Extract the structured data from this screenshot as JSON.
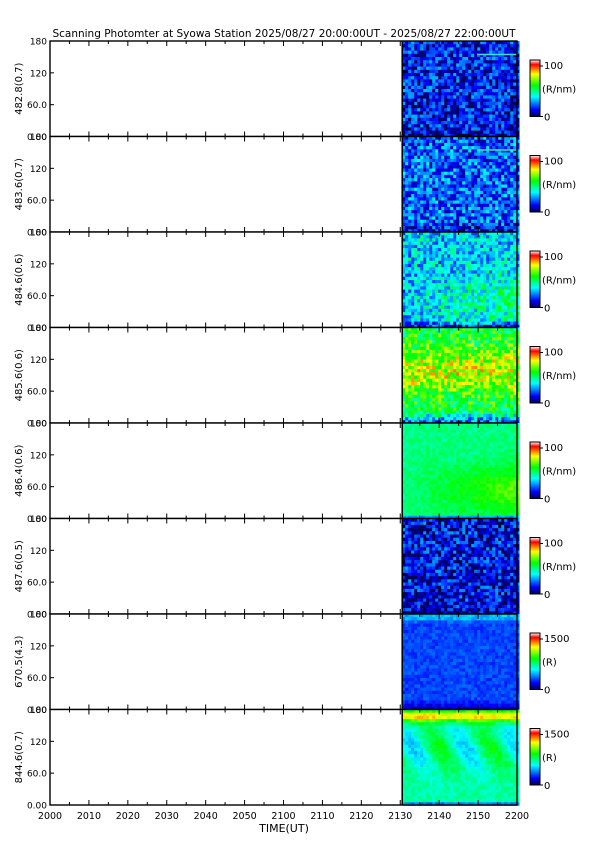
{
  "title": "Scanning Photomter at Syowa Station  2025/08/27 20:00:00UT - 2025/08/27 22:00:00UT",
  "x_axis": {
    "label": "TIME(UT)",
    "tick_labels": [
      "2000",
      "2010",
      "2020",
      "2030",
      "2040",
      "2050",
      "2100",
      "2110",
      "2120",
      "2130",
      "2140",
      "2150",
      "2200"
    ]
  },
  "chart_data": {
    "type": "heatmap",
    "title": "Scanning Photomter at Syowa Station  2025/08/27 20:00:00UT - 2025/08/27 22:00:00UT",
    "xlabel": "TIME(UT)",
    "x_tick_labels": [
      "2000",
      "2010",
      "2020",
      "2030",
      "2040",
      "2050",
      "2100",
      "2110",
      "2120",
      "2130",
      "2140",
      "2150",
      "2200"
    ],
    "xlim_minutes": [
      0,
      120
    ],
    "data_start_minute": 90.5,
    "y_tick_labels": [
      "180",
      "120",
      "60.0",
      "0.00"
    ],
    "ylim": [
      0,
      180
    ],
    "colormap": [
      "#000050",
      "#0000ff",
      "#00ffff",
      "#00ff00",
      "#ffff00",
      "#ff0000",
      "#ffffff"
    ],
    "panels": [
      {
        "ylabel": "482.8(0.7)",
        "cbar_max": "100",
        "cbar_min": "0",
        "unit": "(R/nm)",
        "intensity": 0.14,
        "dark_band": 0.1,
        "features": [
          "noise",
          "faint-streak"
        ]
      },
      {
        "ylabel": "483.6(0.7)",
        "cbar_max": "100",
        "cbar_min": "0",
        "unit": "(R/nm)",
        "intensity": 0.2,
        "dark_band": 0.1,
        "features": [
          "noise",
          "faint-streak"
        ]
      },
      {
        "ylabel": "484.6(0.6)",
        "cbar_max": "100",
        "cbar_min": "0",
        "unit": "(R/nm)",
        "intensity": 0.3,
        "dark_band": 0.08,
        "features": [
          "noise",
          "diffuse"
        ]
      },
      {
        "ylabel": "485.6(0.6)",
        "cbar_max": "100",
        "cbar_min": "0",
        "unit": "(R/nm)",
        "intensity": 0.48,
        "dark_band": 0.12,
        "features": [
          "noise",
          "bright-band"
        ]
      },
      {
        "ylabel": "486.4(0.6)",
        "cbar_max": "100",
        "cbar_min": "0",
        "unit": "(R/nm)",
        "intensity": 0.45,
        "dark_band": 0.05,
        "features": [
          "smooth",
          "diffuse"
        ]
      },
      {
        "ylabel": "487.6(0.5)",
        "cbar_max": "100",
        "cbar_min": "0",
        "unit": "(R/nm)",
        "intensity": 0.12,
        "dark_band": 0.1,
        "features": [
          "noise"
        ]
      },
      {
        "ylabel": "670.5(4.3)",
        "cbar_max": "1500",
        "cbar_min": "0",
        "unit": "(R)",
        "intensity": 0.18,
        "dark_band": 0.1,
        "features": [
          "smooth",
          "top-edge"
        ]
      },
      {
        "ylabel": "844.6(0.7)",
        "cbar_max": "1500",
        "cbar_min": "0",
        "unit": "(R)",
        "intensity": 0.42,
        "dark_band": 0.05,
        "features": [
          "smooth",
          "aurora-top"
        ]
      }
    ]
  }
}
